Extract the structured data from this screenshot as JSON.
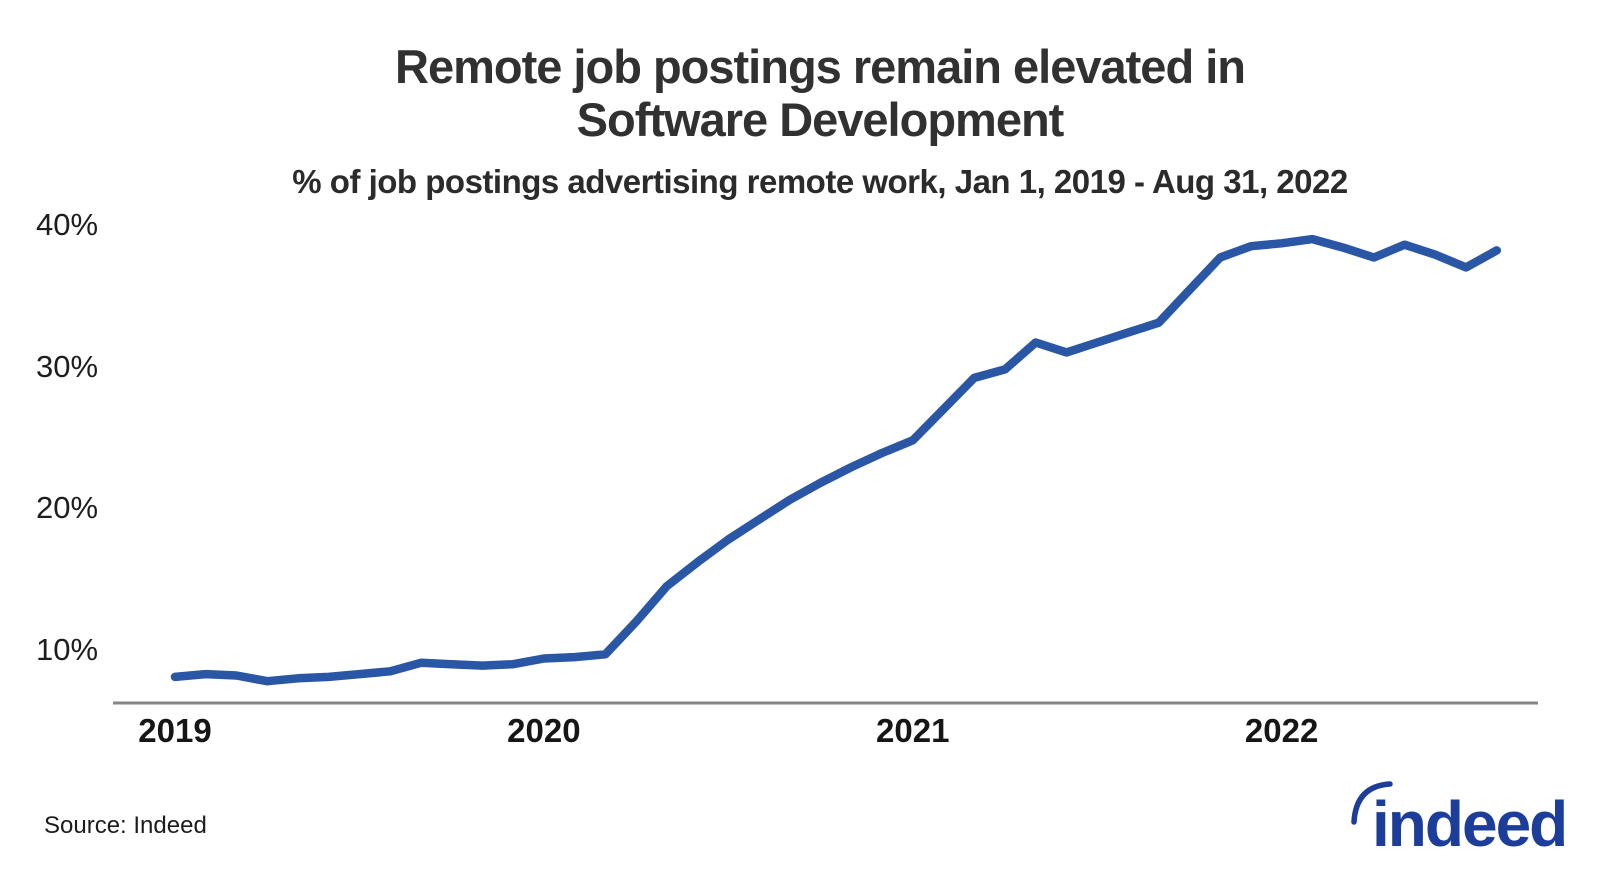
{
  "header": {
    "title_lines": [
      "Remote job postings remain elevated in",
      "Software Development"
    ],
    "subtitle": "% of job postings advertising remote work, Jan 1, 2019 - Aug 31, 2022"
  },
  "footer": {
    "source": "Source: Indeed",
    "logo_text": "indeed"
  },
  "colors": {
    "line": "#2a57a5",
    "axis": "#868686",
    "title": "#313131",
    "tick_label": "#1d1d1d",
    "logo": "#1c3d99"
  },
  "chart_data": {
    "type": "line",
    "title": "Remote job postings remain elevated in Software Development",
    "subtitle": "% of job postings advertising remote work, Jan 1, 2019 - Aug 31, 2022",
    "grid": false,
    "legend": false,
    "x_tick_labels": [
      "2019",
      "2020",
      "2021",
      "2022"
    ],
    "x_tick_month_indices": [
      0,
      12,
      24,
      36
    ],
    "y_tick_labels": [
      "10%",
      "20%",
      "30%",
      "40%"
    ],
    "y_tick_values": [
      10,
      20,
      30,
      40
    ],
    "ylim": [
      5.7,
      41.5
    ],
    "x": [
      "2019-01",
      "2019-02",
      "2019-03",
      "2019-04",
      "2019-05",
      "2019-06",
      "2019-07",
      "2019-08",
      "2019-09",
      "2019-10",
      "2019-11",
      "2019-12",
      "2020-01",
      "2020-02",
      "2020-03",
      "2020-04",
      "2020-05",
      "2020-06",
      "2020-07",
      "2020-08",
      "2020-09",
      "2020-10",
      "2020-11",
      "2020-12",
      "2021-01",
      "2021-02",
      "2021-03",
      "2021-04",
      "2021-05",
      "2021-06",
      "2021-07",
      "2021-08",
      "2021-09",
      "2021-10",
      "2021-11",
      "2021-12",
      "2022-01",
      "2022-02",
      "2022-03",
      "2022-04",
      "2022-05",
      "2022-06",
      "2022-07",
      "2022-08"
    ],
    "series": [
      {
        "name": "% of Software Development job postings advertising remote work",
        "color": "#2a57a5",
        "values": [
          8.1,
          8.3,
          8.2,
          7.8,
          8.0,
          8.1,
          8.3,
          8.5,
          9.1,
          9.0,
          8.9,
          9.0,
          9.4,
          9.5,
          9.7,
          12.0,
          14.5,
          16.2,
          17.8,
          19.2,
          20.6,
          21.8,
          22.9,
          23.9,
          24.8,
          27.0,
          29.2,
          29.8,
          31.7,
          31.0,
          31.7,
          32.4,
          33.1,
          35.4,
          37.7,
          38.5,
          38.7,
          39.0,
          38.4,
          37.7,
          38.6,
          37.9,
          37.0,
          38.2
        ]
      }
    ]
  }
}
